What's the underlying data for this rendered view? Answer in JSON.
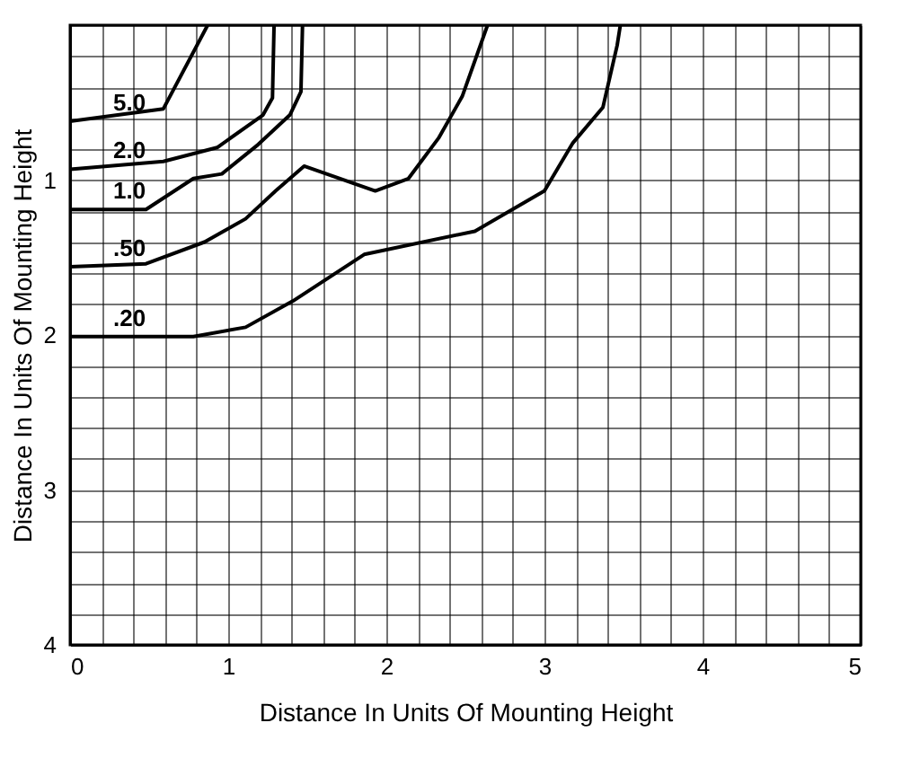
{
  "chart_data": {
    "type": "line",
    "xlabel": "Distance In Units Of Mounting Height",
    "ylabel": "Distance In Units Of Mounting Height",
    "xlim": [
      0,
      5
    ],
    "ylim": [
      4,
      0
    ],
    "xticks": [
      0,
      {
        "value": 0.2,
        "label": null
      },
      {
        "value": 0.4,
        "label": null
      },
      {
        "value": 0.6,
        "label": null
      },
      {
        "value": 0.8,
        "label": null
      },
      1,
      {
        "value": 1.2,
        "label": null
      },
      {
        "value": 1.4,
        "label": null
      },
      {
        "value": 1.6,
        "label": null
      },
      {
        "value": 1.8,
        "label": null
      },
      2,
      {
        "value": 2.2,
        "label": null
      },
      {
        "value": 2.4,
        "label": null
      },
      {
        "value": 2.6,
        "label": null
      },
      {
        "value": 2.8,
        "label": null
      },
      3,
      {
        "value": 3.2,
        "label": null
      },
      {
        "value": 3.4,
        "label": null
      },
      {
        "value": 3.6,
        "label": null
      },
      {
        "value": 3.8,
        "label": null
      },
      4,
      {
        "value": 4.2,
        "label": null
      },
      {
        "value": 4.4,
        "label": null
      },
      {
        "value": 4.6,
        "label": null
      },
      {
        "value": 4.8,
        "label": null
      },
      5
    ],
    "yticks": [
      {
        "value": 0,
        "label": null
      },
      {
        "value": 0.2,
        "label": null
      },
      {
        "value": 0.4,
        "label": null
      },
      {
        "value": 0.6,
        "label": null
      },
      {
        "value": 0.8,
        "label": null
      },
      1,
      {
        "value": 1.2,
        "label": null
      },
      {
        "value": 1.4,
        "label": null
      },
      {
        "value": 1.6,
        "label": null
      },
      {
        "value": 1.8,
        "label": null
      },
      2,
      {
        "value": 2.2,
        "label": null
      },
      {
        "value": 2.4,
        "label": null
      },
      {
        "value": 2.6,
        "label": null
      },
      {
        "value": 2.8,
        "label": null
      },
      3,
      {
        "value": 3.2,
        "label": null
      },
      {
        "value": 3.4,
        "label": null
      },
      {
        "value": 3.6,
        "label": null
      },
      {
        "value": 3.8,
        "label": null
      },
      4
    ],
    "grid": true,
    "marker": "none",
    "line_style": "solid",
    "series": [
      {
        "name": "5.0",
        "color": "#000000",
        "x": [
          0,
          0.59,
          0.87
        ],
        "values": [
          0.62,
          0.54,
          0
        ]
      },
      {
        "name": "2.0",
        "color": "#000000",
        "x": [
          0,
          0.59,
          0.93,
          1.22,
          1.28,
          1.29
        ],
        "values": [
          0.93,
          0.88,
          0.79,
          0.58,
          0.47,
          0
        ]
      },
      {
        "name": "1.0",
        "color": "#000000",
        "x": [
          0,
          0.48,
          0.78,
          0.96,
          1.19,
          1.39,
          1.46,
          1.47
        ],
        "values": [
          1.19,
          1.19,
          0.99,
          0.96,
          0.77,
          0.58,
          0.43,
          0
        ]
      },
      {
        "name": ".50",
        "color": "#000000",
        "x": [
          0,
          0.48,
          0.85,
          1.11,
          1.3,
          1.48,
          1.93,
          2.14,
          2.33,
          2.48,
          2.64
        ],
        "values": [
          1.56,
          1.54,
          1.4,
          1.25,
          1.07,
          0.91,
          1.07,
          0.99,
          0.73,
          0.46,
          0
        ]
      },
      {
        "name": ".20",
        "color": "#000000",
        "x": [
          0,
          0.78,
          1.11,
          1.41,
          1.86,
          2.56,
          3.0,
          3.18,
          3.37,
          3.46,
          3.48
        ],
        "values": [
          2.01,
          2.01,
          1.95,
          1.78,
          1.48,
          1.33,
          1.07,
          0.76,
          0.53,
          0.13,
          0
        ]
      }
    ]
  }
}
